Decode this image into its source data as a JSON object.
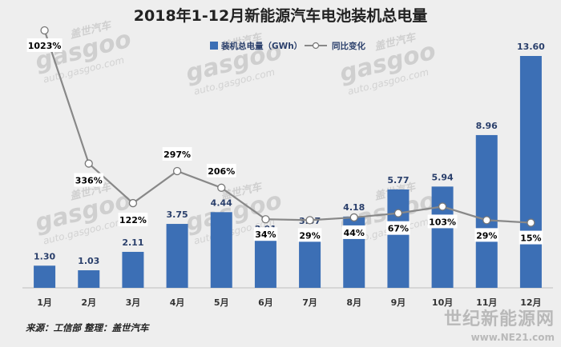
{
  "chart_data": {
    "type": "bar",
    "title": "2018年1-12月新能源汽车电池装机总电量",
    "categories": [
      "1月",
      "2月",
      "3月",
      "4月",
      "5月",
      "6月",
      "7月",
      "8月",
      "9月",
      "10月",
      "11月",
      "12月"
    ],
    "series": [
      {
        "name": "装机总电量（GWh）",
        "type": "bar",
        "values": [
          1.3,
          1.03,
          2.11,
          3.75,
          4.44,
          2.91,
          3.37,
          4.18,
          5.77,
          5.94,
          8.96,
          13.6
        ],
        "labels": [
          "1.30",
          "1.03",
          "2.11",
          "3.75",
          "4.44",
          "2.91",
          "3.37",
          "4.18",
          "5.77",
          "5.94",
          "8.96",
          "13.60"
        ]
      },
      {
        "name": "同比变化",
        "type": "line",
        "values": [
          1023,
          336,
          122,
          297,
          206,
          34,
          29,
          44,
          67,
          103,
          29,
          15
        ],
        "labels": [
          "1023%",
          "336%",
          "122%",
          "297%",
          "206%",
          "34%",
          "29%",
          "44%",
          "67%",
          "103%",
          "29%",
          "15%"
        ]
      }
    ],
    "legend_position": "top-right",
    "grid": false,
    "colors": {
      "bar": "#3c6fb5",
      "line": "#888888",
      "background": "#eeeeee"
    }
  },
  "source_text": "来源：工信部  整理：盖世汽车",
  "watermark": {
    "brand": "gasgoo",
    "cn": "盖世汽车",
    "url": "auto.gasgoo.com"
  },
  "site_mark": {
    "cn": "世纪新能源网",
    "url": "www.NE21.com"
  }
}
